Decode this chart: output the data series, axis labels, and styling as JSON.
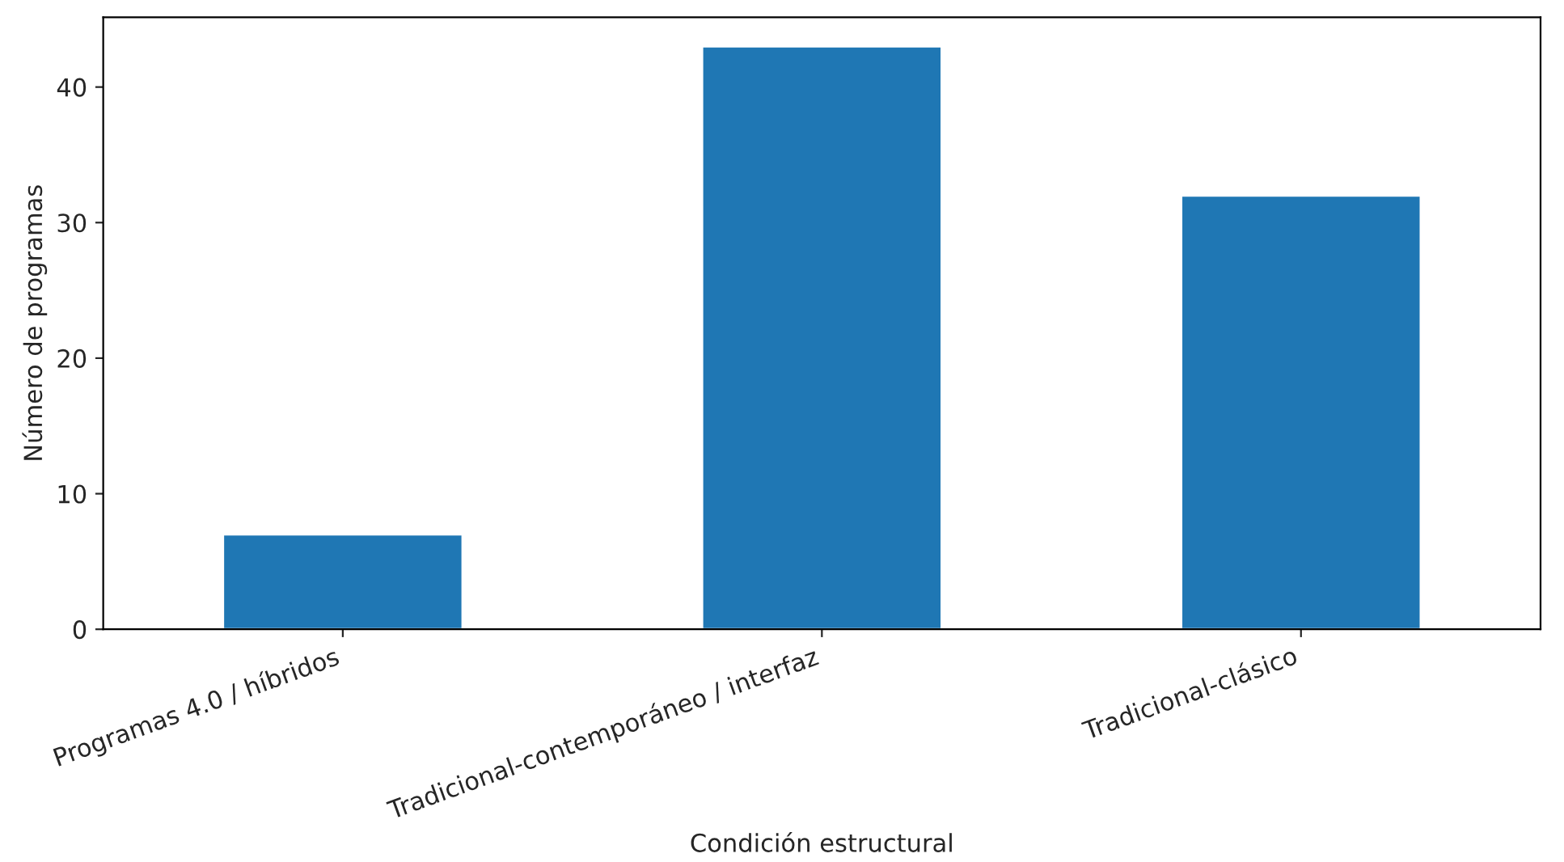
{
  "chart_data": {
    "type": "bar",
    "xlabel": "Condición estructural",
    "ylabel": "Número de programas",
    "categories": [
      "Programas 4.0 / híbridos",
      "Tradicional-contemporáneo / interfaz",
      "Tradicional-clásico"
    ],
    "values": [
      7,
      43,
      32
    ],
    "color": "#1f77b4",
    "ylim": [
      0,
      45.15
    ],
    "yticks": [
      0,
      10,
      20,
      30,
      40
    ],
    "grid": false,
    "legend": false
  }
}
